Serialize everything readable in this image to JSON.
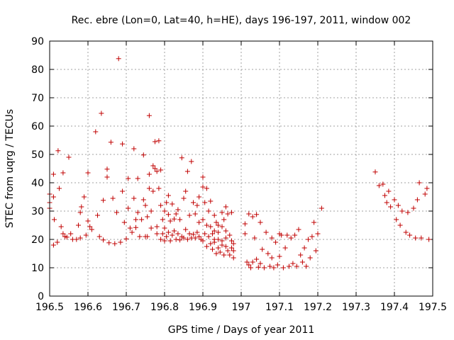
{
  "chart_data": {
    "type": "scatter",
    "title": "Rec. ebre (Lon=0, Lat=40, h=HE), days 196-197, 2011, window 002",
    "xlabel": "GPS time / Days of year 2011",
    "ylabel": "STEC from uqrg / TECUs",
    "xlim": [
      196.5,
      197.5
    ],
    "ylim": [
      0,
      90
    ],
    "xticks": [
      196.5,
      196.6,
      196.7,
      196.8,
      196.9,
      197.0,
      197.1,
      197.2,
      197.3,
      197.4,
      197.5
    ],
    "xtick_labels": [
      "196.5",
      "196.6",
      "196.7",
      "196.8",
      "196.9",
      "197",
      "197.1",
      "197.2",
      "197.3",
      "197.4",
      "197.5"
    ],
    "yticks": [
      0,
      10,
      20,
      30,
      40,
      50,
      60,
      70,
      80,
      90
    ],
    "ytick_labels": [
      "0",
      "10",
      "20",
      "30",
      "40",
      "50",
      "60",
      "70",
      "80",
      "90"
    ],
    "grid": true,
    "marker": "+",
    "color": "#c00000",
    "points": [
      [
        196.5,
        36
      ],
      [
        196.5,
        33
      ],
      [
        196.5,
        31
      ],
      [
        196.51,
        18
      ],
      [
        196.51,
        43
      ],
      [
        196.51,
        35
      ],
      [
        196.512,
        27
      ],
      [
        196.52,
        19
      ],
      [
        196.522,
        51.3
      ],
      [
        196.525,
        38
      ],
      [
        196.53,
        24.5
      ],
      [
        196.535,
        43.5
      ],
      [
        196.535,
        22
      ],
      [
        196.54,
        21
      ],
      [
        196.545,
        20.8
      ],
      [
        196.55,
        49
      ],
      [
        196.555,
        22
      ],
      [
        196.56,
        20
      ],
      [
        196.57,
        20
      ],
      [
        196.575,
        25
      ],
      [
        196.58,
        29.5
      ],
      [
        196.58,
        20.5
      ],
      [
        196.583,
        31.5
      ],
      [
        196.59,
        35
      ],
      [
        196.595,
        21.5
      ],
      [
        196.6,
        26.5
      ],
      [
        196.6,
        43.5
      ],
      [
        196.605,
        24.5
      ],
      [
        196.61,
        23.5
      ],
      [
        196.62,
        58
      ],
      [
        196.625,
        28.5
      ],
      [
        196.63,
        21
      ],
      [
        196.635,
        64.5
      ],
      [
        196.64,
        33.8
      ],
      [
        196.64,
        19.8
      ],
      [
        196.65,
        44.8
      ],
      [
        196.65,
        42
      ],
      [
        196.655,
        18.8
      ],
      [
        196.66,
        54.3
      ],
      [
        196.665,
        34.5
      ],
      [
        196.67,
        18.5
      ],
      [
        196.675,
        29.5
      ],
      [
        196.68,
        83.8
      ],
      [
        196.685,
        19
      ],
      [
        196.69,
        53.7
      ],
      [
        196.69,
        37
      ],
      [
        196.695,
        26
      ],
      [
        196.7,
        20.2
      ],
      [
        196.705,
        41.5
      ],
      [
        196.705,
        31
      ],
      [
        196.71,
        24
      ],
      [
        196.715,
        22.5
      ],
      [
        196.72,
        52
      ],
      [
        196.72,
        34.5
      ],
      [
        196.725,
        27
      ],
      [
        196.725,
        24.2
      ],
      [
        196.73,
        41.5
      ],
      [
        196.73,
        29.5
      ],
      [
        196.735,
        21
      ],
      [
        196.74,
        27
      ],
      [
        196.745,
        49.8
      ],
      [
        196.745,
        34
      ],
      [
        196.75,
        32
      ],
      [
        196.75,
        21
      ],
      [
        196.755,
        28
      ],
      [
        196.755,
        21
      ],
      [
        196.76,
        63.7
      ],
      [
        196.76,
        43
      ],
      [
        196.76,
        38
      ],
      [
        196.765,
        30
      ],
      [
        196.765,
        24
      ],
      [
        196.77,
        46
      ],
      [
        196.77,
        37
      ],
      [
        196.775,
        54.5
      ],
      [
        196.775,
        45
      ],
      [
        196.78,
        44
      ],
      [
        196.785,
        54.8
      ],
      [
        196.785,
        38
      ],
      [
        196.79,
        44.5
      ],
      [
        196.79,
        32
      ],
      [
        196.795,
        27
      ],
      [
        196.8,
        24
      ],
      [
        196.8,
        30
      ],
      [
        196.805,
        33
      ],
      [
        196.81,
        35.5
      ],
      [
        196.81,
        28.8
      ],
      [
        196.815,
        26.5
      ],
      [
        196.82,
        32.5
      ],
      [
        196.825,
        27.2
      ],
      [
        196.83,
        29
      ],
      [
        196.835,
        30.5
      ],
      [
        196.84,
        27
      ],
      [
        196.845,
        48.8
      ],
      [
        196.85,
        34.5
      ],
      [
        196.855,
        37
      ],
      [
        196.86,
        44
      ],
      [
        196.865,
        28.5
      ],
      [
        196.87,
        47.5
      ],
      [
        196.875,
        33
      ],
      [
        196.88,
        29
      ],
      [
        196.885,
        32
      ],
      [
        196.89,
        35
      ],
      [
        196.9,
        38.5
      ],
      [
        196.9,
        42
      ],
      [
        196.905,
        33
      ],
      [
        196.91,
        38
      ],
      [
        196.915,
        30
      ],
      [
        196.92,
        33.5
      ],
      [
        196.925,
        22
      ],
      [
        196.93,
        28.5
      ],
      [
        196.935,
        26
      ],
      [
        196.94,
        22.5
      ],
      [
        196.95,
        29.5
      ],
      [
        196.955,
        27
      ],
      [
        196.96,
        31.5
      ],
      [
        196.965,
        29
      ],
      [
        196.97,
        21.5
      ],
      [
        196.975,
        19.5
      ],
      [
        196.98,
        18.5
      ],
      [
        196.975,
        29.5
      ],
      [
        196.78,
        22
      ],
      [
        196.78,
        24.5
      ],
      [
        196.79,
        20
      ],
      [
        196.795,
        22
      ],
      [
        196.8,
        19.5
      ],
      [
        196.805,
        21
      ],
      [
        196.81,
        22.5
      ],
      [
        196.815,
        19.5
      ],
      [
        196.82,
        21.5
      ],
      [
        196.825,
        23
      ],
      [
        196.83,
        20
      ],
      [
        196.835,
        22
      ],
      [
        196.84,
        19.8
      ],
      [
        196.845,
        21
      ],
      [
        196.85,
        20.5
      ],
      [
        196.855,
        23.5
      ],
      [
        196.86,
        20
      ],
      [
        196.865,
        22
      ],
      [
        196.87,
        20.5
      ],
      [
        196.875,
        21.8
      ],
      [
        196.88,
        20.5
      ],
      [
        196.885,
        22.5
      ],
      [
        196.89,
        21
      ],
      [
        196.895,
        20
      ],
      [
        196.9,
        19.5
      ],
      [
        196.905,
        22
      ],
      [
        196.91,
        17.5
      ],
      [
        196.915,
        21
      ],
      [
        196.92,
        18.5
      ],
      [
        196.925,
        16.5
      ],
      [
        196.93,
        20
      ],
      [
        196.935,
        15
      ],
      [
        196.94,
        17
      ],
      [
        196.945,
        15.5
      ],
      [
        196.95,
        18
      ],
      [
        196.955,
        14.5
      ],
      [
        196.96,
        17.5
      ],
      [
        196.965,
        16
      ],
      [
        196.97,
        14.5
      ],
      [
        196.975,
        17
      ],
      [
        196.98,
        16
      ],
      [
        196.98,
        13.5
      ],
      [
        196.89,
        26
      ],
      [
        196.9,
        27
      ],
      [
        196.91,
        25
      ],
      [
        196.92,
        24.5
      ],
      [
        196.93,
        23
      ],
      [
        196.94,
        25
      ],
      [
        196.95,
        24.5
      ],
      [
        196.96,
        23
      ],
      [
        196.93,
        19
      ],
      [
        196.94,
        20
      ],
      [
        196.95,
        19.5
      ],
      [
        196.96,
        20.5
      ],
      [
        197.01,
        25.5
      ],
      [
        197.01,
        22
      ],
      [
        197.015,
        12
      ],
      [
        197.02,
        29
      ],
      [
        197.02,
        11
      ],
      [
        197.025,
        10
      ],
      [
        197.03,
        28
      ],
      [
        197.03,
        12
      ],
      [
        197.035,
        20.5
      ],
      [
        197.04,
        28.8
      ],
      [
        197.04,
        13
      ],
      [
        197.045,
        10.2
      ],
      [
        197.05,
        26
      ],
      [
        197.05,
        11.5
      ],
      [
        197.055,
        16.5
      ],
      [
        197.06,
        10
      ],
      [
        197.065,
        22.5
      ],
      [
        197.07,
        15
      ],
      [
        197.075,
        10.5
      ],
      [
        197.08,
        20.5
      ],
      [
        197.08,
        13.5
      ],
      [
        197.085,
        10
      ],
      [
        197.09,
        19
      ],
      [
        197.095,
        11
      ],
      [
        197.1,
        22
      ],
      [
        197.1,
        14
      ],
      [
        197.105,
        21.5
      ],
      [
        197.11,
        10
      ],
      [
        197.115,
        17
      ],
      [
        197.12,
        21.5
      ],
      [
        197.125,
        10.5
      ],
      [
        197.13,
        20.5
      ],
      [
        197.135,
        11.5
      ],
      [
        197.14,
        21.5
      ],
      [
        197.145,
        10.5
      ],
      [
        197.15,
        23.5
      ],
      [
        197.155,
        14.5
      ],
      [
        197.16,
        12
      ],
      [
        197.165,
        17
      ],
      [
        197.17,
        10.5
      ],
      [
        197.175,
        20
      ],
      [
        197.18,
        13.5
      ],
      [
        197.185,
        21
      ],
      [
        197.19,
        26
      ],
      [
        197.195,
        16
      ],
      [
        197.2,
        22
      ],
      [
        197.21,
        31
      ],
      [
        197.35,
        43.8
      ],
      [
        197.36,
        39
      ],
      [
        197.37,
        39.5
      ],
      [
        197.375,
        35.5
      ],
      [
        197.38,
        33
      ],
      [
        197.385,
        37
      ],
      [
        197.39,
        31.5
      ],
      [
        197.4,
        34
      ],
      [
        197.405,
        27
      ],
      [
        197.41,
        32
      ],
      [
        197.415,
        25
      ],
      [
        197.42,
        30
      ],
      [
        197.43,
        22.5
      ],
      [
        197.435,
        29.5
      ],
      [
        197.44,
        21.5
      ],
      [
        197.45,
        31
      ],
      [
        197.455,
        20.5
      ],
      [
        197.46,
        34
      ],
      [
        197.465,
        40
      ],
      [
        197.47,
        20.5
      ],
      [
        197.48,
        36
      ],
      [
        197.485,
        38
      ],
      [
        197.49,
        20
      ]
    ]
  }
}
